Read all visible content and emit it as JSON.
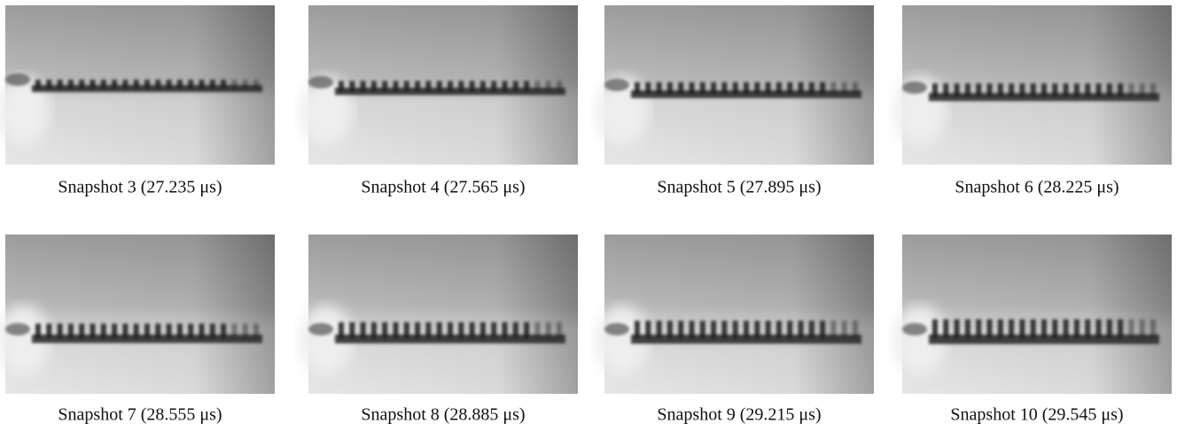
{
  "panels": [
    {
      "caption": "Snapshot 3 (27.235 μs)"
    },
    {
      "caption": "Snapshot 4 (27.565 μs)"
    },
    {
      "caption": "Snapshot 5 (27.895 μs)"
    },
    {
      "caption": "Snapshot 6 (28.225 μs)"
    },
    {
      "caption": "Snapshot 7 (28.555 μs)"
    },
    {
      "caption": "Snapshot 8 (28.885 μs)"
    },
    {
      "caption": "Snapshot 9 (29.215 μs)"
    },
    {
      "caption": "Snapshot 10 (29.545 μs)"
    }
  ]
}
